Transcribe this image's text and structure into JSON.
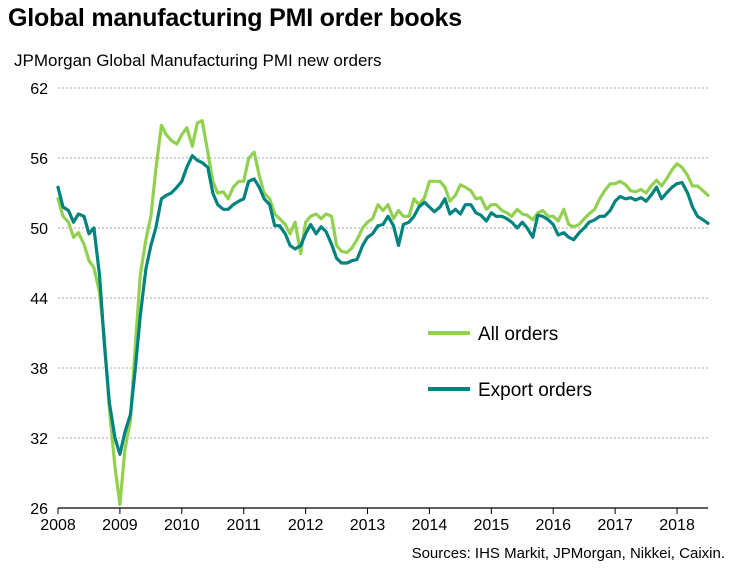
{
  "header": {
    "title": "Global manufacturing PMI order books",
    "subtitle": "JPMorgan Global Manufacturing PMI new orders",
    "source": "Sources: IHS Markit, JPMorgan, Nikkei, Caixin."
  },
  "colors": {
    "all_orders": "#92d050",
    "export_orders": "#00827f",
    "grid": "#a6a6a6",
    "axis": "#000000"
  },
  "chart_data": {
    "type": "line",
    "title": "Global manufacturing PMI order books",
    "subtitle": "JPMorgan Global Manufacturing PMI new orders",
    "xlabel": "",
    "ylabel": "",
    "xlim": [
      2008,
      2018.5
    ],
    "ylim": [
      26,
      62
    ],
    "yticks": [
      26,
      32,
      38,
      44,
      50,
      56,
      62
    ],
    "xticks": [
      "2008",
      "2009",
      "2010",
      "2011",
      "2012",
      "2013",
      "2014",
      "2015",
      "2016",
      "2017",
      "2018"
    ],
    "grid": "horizontal dashed",
    "legend": "center-right",
    "series": [
      {
        "name": "All orders",
        "color": "#92d050",
        "points": [
          [
            2008.0,
            52.5
          ],
          [
            2008.08,
            51.0
          ],
          [
            2008.17,
            50.5
          ],
          [
            2008.25,
            49.2
          ],
          [
            2008.33,
            49.6
          ],
          [
            2008.42,
            48.6
          ],
          [
            2008.5,
            47.2
          ],
          [
            2008.58,
            46.6
          ],
          [
            2008.67,
            44.5
          ],
          [
            2008.75,
            40.5
          ],
          [
            2008.83,
            34.5
          ],
          [
            2008.92,
            29.5
          ],
          [
            2009.0,
            26.3
          ],
          [
            2009.08,
            31.0
          ],
          [
            2009.17,
            33.5
          ],
          [
            2009.25,
            40.0
          ],
          [
            2009.33,
            46.0
          ],
          [
            2009.42,
            49.0
          ],
          [
            2009.5,
            51.0
          ],
          [
            2009.58,
            55.0
          ],
          [
            2009.67,
            58.8
          ],
          [
            2009.75,
            58.0
          ],
          [
            2009.83,
            57.5
          ],
          [
            2009.92,
            57.2
          ],
          [
            2010.0,
            58.0
          ],
          [
            2010.08,
            58.6
          ],
          [
            2010.17,
            57.0
          ],
          [
            2010.25,
            59.0
          ],
          [
            2010.33,
            59.2
          ],
          [
            2010.42,
            56.5
          ],
          [
            2010.5,
            54.0
          ],
          [
            2010.58,
            53.0
          ],
          [
            2010.67,
            53.1
          ],
          [
            2010.75,
            52.5
          ],
          [
            2010.83,
            53.5
          ],
          [
            2010.92,
            54.0
          ],
          [
            2011.0,
            54.0
          ],
          [
            2011.08,
            56.0
          ],
          [
            2011.17,
            56.5
          ],
          [
            2011.25,
            54.5
          ],
          [
            2011.33,
            53.0
          ],
          [
            2011.42,
            52.5
          ],
          [
            2011.5,
            51.2
          ],
          [
            2011.58,
            50.8
          ],
          [
            2011.67,
            50.3
          ],
          [
            2011.75,
            49.5
          ],
          [
            2011.83,
            50.5
          ],
          [
            2011.92,
            47.8
          ],
          [
            2012.0,
            50.5
          ],
          [
            2012.08,
            51.0
          ],
          [
            2012.17,
            51.2
          ],
          [
            2012.25,
            50.8
          ],
          [
            2012.33,
            51.2
          ],
          [
            2012.42,
            51.0
          ],
          [
            2012.5,
            48.5
          ],
          [
            2012.58,
            48.0
          ],
          [
            2012.67,
            47.9
          ],
          [
            2012.75,
            48.3
          ],
          [
            2012.83,
            49.0
          ],
          [
            2012.92,
            50.0
          ],
          [
            2013.0,
            50.5
          ],
          [
            2013.08,
            50.8
          ],
          [
            2013.17,
            52.0
          ],
          [
            2013.25,
            51.5
          ],
          [
            2013.33,
            52.0
          ],
          [
            2013.42,
            50.8
          ],
          [
            2013.5,
            51.5
          ],
          [
            2013.58,
            51.0
          ],
          [
            2013.67,
            51.0
          ],
          [
            2013.75,
            52.5
          ],
          [
            2013.83,
            52.0
          ],
          [
            2013.92,
            52.6
          ],
          [
            2014.0,
            54.0
          ],
          [
            2014.08,
            54.0
          ],
          [
            2014.17,
            54.0
          ],
          [
            2014.25,
            53.5
          ],
          [
            2014.33,
            52.3
          ],
          [
            2014.42,
            52.8
          ],
          [
            2014.5,
            53.7
          ],
          [
            2014.58,
            53.5
          ],
          [
            2014.67,
            53.2
          ],
          [
            2014.75,
            52.5
          ],
          [
            2014.83,
            52.6
          ],
          [
            2014.92,
            51.6
          ],
          [
            2015.0,
            52.0
          ],
          [
            2015.08,
            52.0
          ],
          [
            2015.17,
            51.5
          ],
          [
            2015.25,
            51.3
          ],
          [
            2015.33,
            51.0
          ],
          [
            2015.42,
            51.6
          ],
          [
            2015.5,
            51.2
          ],
          [
            2015.58,
            51.1
          ],
          [
            2015.67,
            50.7
          ],
          [
            2015.75,
            51.3
          ],
          [
            2015.83,
            51.5
          ],
          [
            2015.92,
            51.0
          ],
          [
            2016.0,
            51.0
          ],
          [
            2016.08,
            50.6
          ],
          [
            2016.17,
            51.6
          ],
          [
            2016.25,
            50.3
          ],
          [
            2016.33,
            50.1
          ],
          [
            2016.42,
            50.3
          ],
          [
            2016.5,
            50.8
          ],
          [
            2016.58,
            51.2
          ],
          [
            2016.67,
            51.6
          ],
          [
            2016.75,
            52.5
          ],
          [
            2016.83,
            53.2
          ],
          [
            2016.92,
            53.8
          ],
          [
            2017.0,
            53.8
          ],
          [
            2017.08,
            54.0
          ],
          [
            2017.17,
            53.7
          ],
          [
            2017.25,
            53.2
          ],
          [
            2017.33,
            53.1
          ],
          [
            2017.42,
            53.3
          ],
          [
            2017.5,
            53.0
          ],
          [
            2017.58,
            53.6
          ],
          [
            2017.67,
            54.1
          ],
          [
            2017.75,
            53.6
          ],
          [
            2017.83,
            54.2
          ],
          [
            2017.92,
            55.0
          ],
          [
            2018.0,
            55.5
          ],
          [
            2018.08,
            55.2
          ],
          [
            2018.17,
            54.5
          ],
          [
            2018.25,
            53.6
          ],
          [
            2018.33,
            53.6
          ],
          [
            2018.42,
            53.2
          ],
          [
            2018.5,
            52.8
          ]
        ]
      },
      {
        "name": "Export orders",
        "color": "#00827f",
        "points": [
          [
            2008.0,
            53.5
          ],
          [
            2008.08,
            51.8
          ],
          [
            2008.17,
            51.5
          ],
          [
            2008.25,
            50.5
          ],
          [
            2008.33,
            51.2
          ],
          [
            2008.42,
            51.0
          ],
          [
            2008.5,
            49.5
          ],
          [
            2008.58,
            50.0
          ],
          [
            2008.67,
            46.0
          ],
          [
            2008.75,
            40.0
          ],
          [
            2008.83,
            35.0
          ],
          [
            2008.92,
            32.0
          ],
          [
            2009.0,
            30.6
          ],
          [
            2009.08,
            32.5
          ],
          [
            2009.17,
            34.0
          ],
          [
            2009.25,
            38.0
          ],
          [
            2009.33,
            42.5
          ],
          [
            2009.42,
            46.5
          ],
          [
            2009.5,
            48.5
          ],
          [
            2009.58,
            50.0
          ],
          [
            2009.67,
            52.5
          ],
          [
            2009.75,
            52.8
          ],
          [
            2009.83,
            53.0
          ],
          [
            2009.92,
            53.5
          ],
          [
            2010.0,
            54.0
          ],
          [
            2010.08,
            55.2
          ],
          [
            2010.17,
            56.2
          ],
          [
            2010.25,
            55.8
          ],
          [
            2010.33,
            55.6
          ],
          [
            2010.42,
            55.2
          ],
          [
            2010.5,
            53.0
          ],
          [
            2010.58,
            52.0
          ],
          [
            2010.67,
            51.6
          ],
          [
            2010.75,
            51.6
          ],
          [
            2010.83,
            52.0
          ],
          [
            2010.92,
            52.3
          ],
          [
            2011.0,
            52.5
          ],
          [
            2011.08,
            54.0
          ],
          [
            2011.17,
            54.2
          ],
          [
            2011.25,
            53.5
          ],
          [
            2011.33,
            52.5
          ],
          [
            2011.42,
            52.0
          ],
          [
            2011.5,
            50.2
          ],
          [
            2011.58,
            50.2
          ],
          [
            2011.67,
            49.5
          ],
          [
            2011.75,
            48.5
          ],
          [
            2011.83,
            48.2
          ],
          [
            2011.92,
            48.5
          ],
          [
            2012.0,
            49.5
          ],
          [
            2012.08,
            50.3
          ],
          [
            2012.17,
            49.5
          ],
          [
            2012.25,
            50.1
          ],
          [
            2012.33,
            49.7
          ],
          [
            2012.42,
            48.6
          ],
          [
            2012.5,
            47.4
          ],
          [
            2012.58,
            47.0
          ],
          [
            2012.67,
            47.0
          ],
          [
            2012.75,
            47.2
          ],
          [
            2012.83,
            47.3
          ],
          [
            2012.92,
            48.5
          ],
          [
            2013.0,
            49.2
          ],
          [
            2013.08,
            49.5
          ],
          [
            2013.17,
            50.2
          ],
          [
            2013.25,
            50.3
          ],
          [
            2013.33,
            51.0
          ],
          [
            2013.42,
            50.2
          ],
          [
            2013.5,
            48.5
          ],
          [
            2013.58,
            50.3
          ],
          [
            2013.67,
            50.5
          ],
          [
            2013.75,
            51.0
          ],
          [
            2013.83,
            51.8
          ],
          [
            2013.92,
            52.2
          ],
          [
            2014.0,
            51.8
          ],
          [
            2014.08,
            51.4
          ],
          [
            2014.17,
            51.8
          ],
          [
            2014.25,
            52.5
          ],
          [
            2014.33,
            51.2
          ],
          [
            2014.42,
            51.6
          ],
          [
            2014.5,
            51.2
          ],
          [
            2014.58,
            52.0
          ],
          [
            2014.67,
            52.0
          ],
          [
            2014.75,
            51.3
          ],
          [
            2014.83,
            51.1
          ],
          [
            2014.92,
            50.6
          ],
          [
            2015.0,
            51.3
          ],
          [
            2015.08,
            51.0
          ],
          [
            2015.17,
            51.0
          ],
          [
            2015.25,
            50.8
          ],
          [
            2015.33,
            50.5
          ],
          [
            2015.42,
            50.0
          ],
          [
            2015.5,
            50.5
          ],
          [
            2015.58,
            50.0
          ],
          [
            2015.67,
            49.2
          ],
          [
            2015.75,
            51.1
          ],
          [
            2015.83,
            51.0
          ],
          [
            2015.92,
            50.7
          ],
          [
            2016.0,
            50.3
          ],
          [
            2016.08,
            49.4
          ],
          [
            2016.17,
            49.6
          ],
          [
            2016.25,
            49.2
          ],
          [
            2016.33,
            49.0
          ],
          [
            2016.42,
            49.6
          ],
          [
            2016.5,
            50.0
          ],
          [
            2016.58,
            50.5
          ],
          [
            2016.67,
            50.7
          ],
          [
            2016.75,
            51.0
          ],
          [
            2016.83,
            51.0
          ],
          [
            2016.92,
            51.5
          ],
          [
            2017.0,
            52.3
          ],
          [
            2017.08,
            52.7
          ],
          [
            2017.17,
            52.5
          ],
          [
            2017.25,
            52.6
          ],
          [
            2017.33,
            52.4
          ],
          [
            2017.42,
            52.6
          ],
          [
            2017.5,
            52.3
          ],
          [
            2017.58,
            52.8
          ],
          [
            2017.67,
            53.5
          ],
          [
            2017.75,
            52.5
          ],
          [
            2017.83,
            53.0
          ],
          [
            2017.92,
            53.5
          ],
          [
            2018.0,
            53.8
          ],
          [
            2018.08,
            53.9
          ],
          [
            2018.17,
            53.0
          ],
          [
            2018.25,
            51.8
          ],
          [
            2018.33,
            51.0
          ],
          [
            2018.42,
            50.7
          ],
          [
            2018.5,
            50.4
          ]
        ]
      }
    ]
  }
}
